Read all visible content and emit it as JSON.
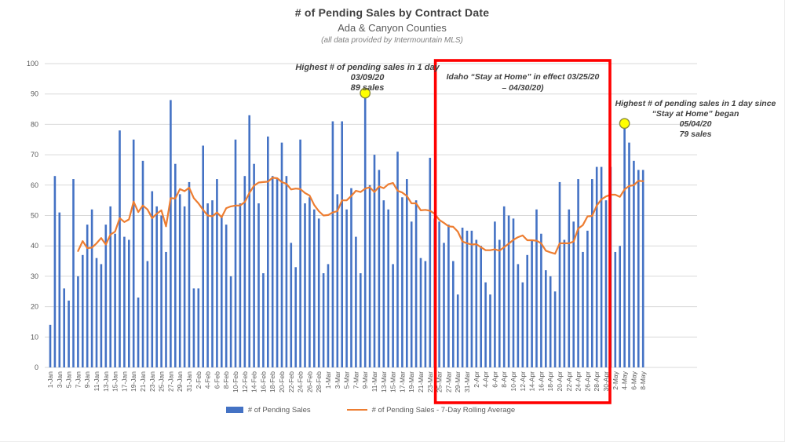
{
  "header": {
    "title": "# of Pending Sales by Contract Date",
    "subtitle": "Ada & Canyon Counties",
    "source": "(all data provided by Intermountain MLS)"
  },
  "legend": {
    "items": [
      {
        "label": "# of Pending Sales",
        "type": "bar"
      },
      {
        "label": "# of Pending Sales - 7-Day Rolling Average",
        "type": "line"
      }
    ]
  },
  "annotations": {
    "peak1": {
      "line1": "Highest # of pending sales in 1 day",
      "line2": "03/09/20",
      "line3": "89 sales",
      "date": "9-Mar",
      "value": 89
    },
    "stay_home": {
      "line1": "Idaho “Stay at Home” in effect 03/25/20",
      "line2": "– 04/30/20)",
      "start_date": "25-Mar",
      "end_date": "30-Apr"
    },
    "peak2": {
      "line1": "Highest # of pending sales in 1 day since",
      "line2": "“Stay at Home” began",
      "line3": "05/04/20",
      "line4": "79 sales",
      "date": "4-May",
      "value": 79
    }
  },
  "colors": {
    "bar": "#4472C4",
    "line": "#ED7D31",
    "marker_fill": "#FFFF00",
    "marker_stroke": "#8A8A3C",
    "box": "#FF0000",
    "gridline": "#D9D9D9",
    "axis_text": "#595959",
    "title": "#404040"
  },
  "y_axis": {
    "min": 0,
    "max": 100,
    "step": 10
  },
  "chart_data": {
    "type": "bar",
    "title": "# of Pending Sales by Contract Date",
    "xlabel": "",
    "ylabel": "",
    "ylim": [
      0,
      100
    ],
    "ytick_step": 10,
    "grid": "horizontal",
    "legend_position": "bottom",
    "x_label_every": 2,
    "x": [
      "1-Jan",
      "2-Jan",
      "3-Jan",
      "4-Jan",
      "5-Jan",
      "6-Jan",
      "7-Jan",
      "8-Jan",
      "9-Jan",
      "10-Jan",
      "11-Jan",
      "12-Jan",
      "13-Jan",
      "14-Jan",
      "15-Jan",
      "16-Jan",
      "17-Jan",
      "18-Jan",
      "19-Jan",
      "20-Jan",
      "21-Jan",
      "22-Jan",
      "23-Jan",
      "24-Jan",
      "25-Jan",
      "26-Jan",
      "27-Jan",
      "28-Jan",
      "29-Jan",
      "30-Jan",
      "31-Jan",
      "1-Feb",
      "2-Feb",
      "3-Feb",
      "4-Feb",
      "5-Feb",
      "6-Feb",
      "7-Feb",
      "8-Feb",
      "9-Feb",
      "10-Feb",
      "11-Feb",
      "12-Feb",
      "13-Feb",
      "14-Feb",
      "15-Feb",
      "16-Feb",
      "17-Feb",
      "18-Feb",
      "19-Feb",
      "20-Feb",
      "21-Feb",
      "22-Feb",
      "23-Feb",
      "24-Feb",
      "25-Feb",
      "26-Feb",
      "27-Feb",
      "28-Feb",
      "29-Feb",
      "1-Mar",
      "2-Mar",
      "3-Mar",
      "4-Mar",
      "5-Mar",
      "6-Mar",
      "7-Mar",
      "8-Mar",
      "9-Mar",
      "10-Mar",
      "11-Mar",
      "12-Mar",
      "13-Mar",
      "14-Mar",
      "15-Mar",
      "16-Mar",
      "17-Mar",
      "18-Mar",
      "19-Mar",
      "20-Mar",
      "21-Mar",
      "22-Mar",
      "23-Mar",
      "24-Mar",
      "25-Mar",
      "26-Mar",
      "27-Mar",
      "28-Mar",
      "29-Mar",
      "30-Mar",
      "31-Mar",
      "1-Apr",
      "2-Apr",
      "3-Apr",
      "4-Apr",
      "5-Apr",
      "6-Apr",
      "7-Apr",
      "8-Apr",
      "9-Apr",
      "10-Apr",
      "11-Apr",
      "12-Apr",
      "13-Apr",
      "14-Apr",
      "15-Apr",
      "16-Apr",
      "17-Apr",
      "18-Apr",
      "19-Apr",
      "20-Apr",
      "21-Apr",
      "22-Apr",
      "23-Apr",
      "24-Apr",
      "25-Apr",
      "26-Apr",
      "27-Apr",
      "28-Apr",
      "29-Apr",
      "30-Apr",
      "1-May",
      "2-May",
      "3-May",
      "4-May",
      "5-May",
      "6-May",
      "7-May",
      "8-May"
    ],
    "series": [
      {
        "name": "# of Pending Sales",
        "type": "bar",
        "values": [
          14,
          63,
          51,
          26,
          22,
          62,
          30,
          37,
          47,
          52,
          36,
          34,
          47,
          53,
          44,
          78,
          43,
          42,
          75,
          23,
          68,
          35,
          58,
          53,
          50,
          38,
          88,
          67,
          57,
          53,
          61,
          26,
          26,
          73,
          54,
          55,
          62,
          50,
          47,
          30,
          75,
          54,
          63,
          83,
          67,
          54,
          31,
          76,
          63,
          62,
          74,
          63,
          41,
          33,
          75,
          54,
          56,
          52,
          49,
          31,
          34,
          81,
          57,
          81,
          52,
          59,
          43,
          31,
          89,
          60,
          70,
          65,
          55,
          52,
          34,
          71,
          56,
          62,
          48,
          55,
          36,
          35,
          69,
          49,
          48,
          41,
          47,
          35,
          24,
          46,
          45,
          45,
          42,
          40,
          28,
          24,
          48,
          42,
          53,
          50,
          49,
          34,
          28,
          37,
          42,
          52,
          44,
          32,
          30,
          25,
          61,
          42,
          52,
          48,
          62,
          38,
          45,
          62,
          66,
          66,
          55,
          66,
          38,
          40,
          79,
          74,
          68,
          65,
          65
        ]
      },
      {
        "name": "# of Pending Sales - 7-Day Rolling Average",
        "type": "line",
        "derived_from": "# of Pending Sales",
        "window": 7
      }
    ]
  }
}
